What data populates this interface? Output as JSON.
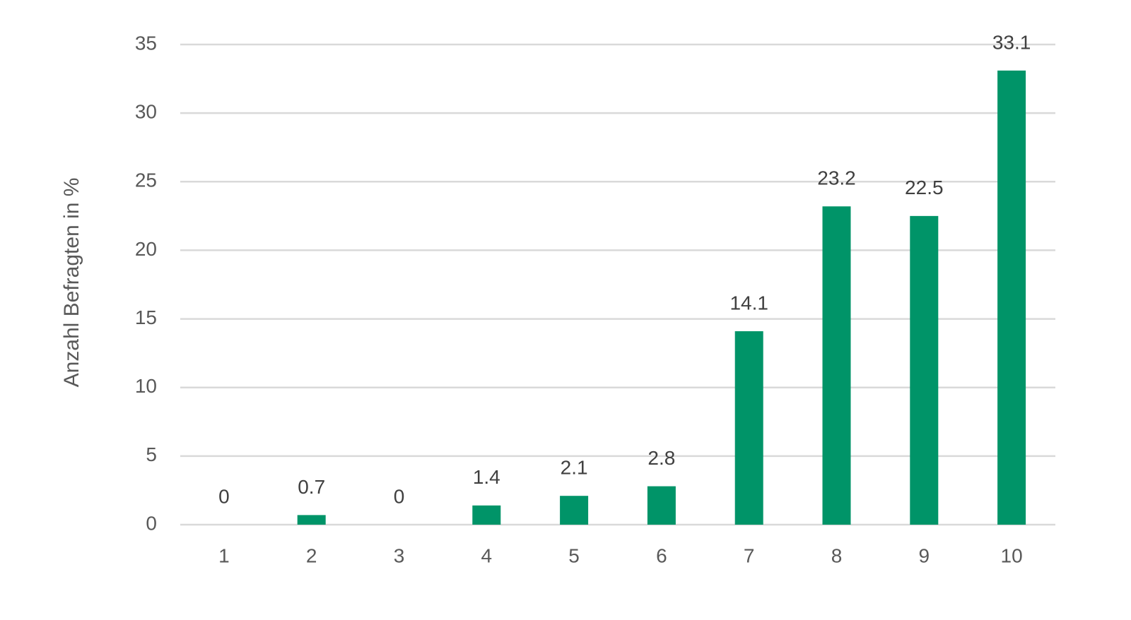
{
  "chart_data": {
    "type": "bar",
    "y_label": "Anzahl Befragten in %",
    "categories": [
      "1",
      "2",
      "3",
      "4",
      "5",
      "6",
      "7",
      "8",
      "9",
      "10"
    ],
    "values": [
      0,
      0.7,
      0,
      1.4,
      2.1,
      2.8,
      14.1,
      23.2,
      22.5,
      33.1
    ],
    "color": "#009468",
    "ylim": [
      0,
      35
    ],
    "yticks": [
      0,
      5,
      10,
      15,
      20,
      25,
      30,
      35
    ],
    "grid": true
  }
}
